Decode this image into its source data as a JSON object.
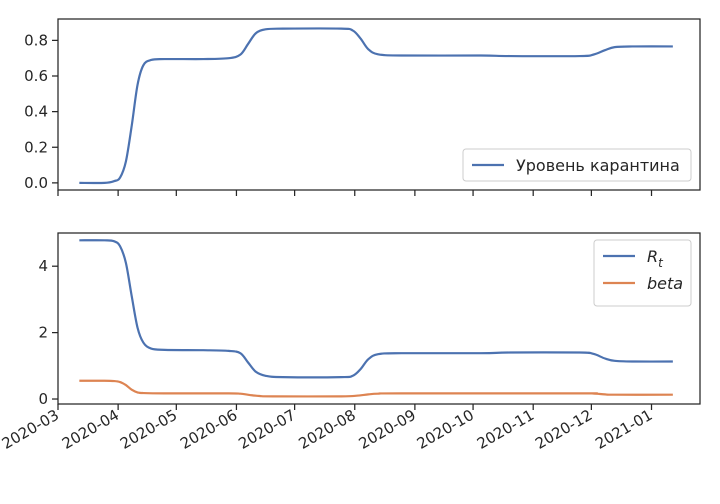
{
  "chart_data": [
    {
      "type": "line",
      "ylim": [
        -0.04,
        0.92
      ],
      "yticks": [
        "0.0",
        "0.2",
        "0.4",
        "0.6",
        "0.8"
      ],
      "ytick_values": [
        0.0,
        0.2,
        0.4,
        0.6,
        0.8
      ],
      "legend": {
        "placement": "lower-right"
      },
      "grid": false,
      "series": [
        {
          "name": "Уровень карантина",
          "color": "#4c72b0",
          "points": [
            [
              "2020-03-12",
              0.0
            ],
            [
              "2020-03-25",
              0.0
            ],
            [
              "2020-03-30",
              0.01
            ],
            [
              "2020-04-02",
              0.03
            ],
            [
              "2020-04-05",
              0.12
            ],
            [
              "2020-04-08",
              0.32
            ],
            [
              "2020-04-11",
              0.55
            ],
            [
              "2020-04-14",
              0.66
            ],
            [
              "2020-04-18",
              0.69
            ],
            [
              "2020-04-25",
              0.695
            ],
            [
              "2020-05-15",
              0.695
            ],
            [
              "2020-05-28",
              0.7
            ],
            [
              "2020-06-03",
              0.72
            ],
            [
              "2020-06-07",
              0.78
            ],
            [
              "2020-06-11",
              0.84
            ],
            [
              "2020-06-16",
              0.862
            ],
            [
              "2020-06-25",
              0.866
            ],
            [
              "2020-07-25",
              0.866
            ],
            [
              "2020-07-31",
              0.855
            ],
            [
              "2020-08-04",
              0.81
            ],
            [
              "2020-08-08",
              0.75
            ],
            [
              "2020-08-13",
              0.722
            ],
            [
              "2020-08-25",
              0.715
            ],
            [
              "2020-10-05",
              0.715
            ],
            [
              "2020-10-20",
              0.712
            ],
            [
              "2020-11-25",
              0.712
            ],
            [
              "2020-12-02",
              0.72
            ],
            [
              "2020-12-08",
              0.745
            ],
            [
              "2020-12-13",
              0.762
            ],
            [
              "2020-12-22",
              0.766
            ],
            [
              "2021-01-12",
              0.766
            ]
          ]
        }
      ]
    },
    {
      "type": "line",
      "ylim": [
        -0.15,
        5.0
      ],
      "yticks": [
        "0",
        "2",
        "4"
      ],
      "ytick_values": [
        0,
        2,
        4
      ],
      "xticks": [
        "2020-03",
        "2020-04",
        "2020-05",
        "2020-06",
        "2020-07",
        "2020-08",
        "2020-09",
        "2020-10",
        "2020-11",
        "2020-12",
        "2021-01"
      ],
      "xtick_dates": [
        "2020-03-01",
        "2020-04-01",
        "2020-05-01",
        "2020-06-01",
        "2020-07-01",
        "2020-08-01",
        "2020-09-01",
        "2020-10-01",
        "2020-11-01",
        "2020-12-01",
        "2021-01-01"
      ],
      "legend": {
        "placement": "upper-right"
      },
      "grid": false,
      "series": [
        {
          "name": "R",
          "name_subscript": "t",
          "color": "#4c72b0",
          "points": [
            [
              "2020-03-12",
              4.78
            ],
            [
              "2020-03-25",
              4.78
            ],
            [
              "2020-03-30",
              4.75
            ],
            [
              "2020-04-02",
              4.6
            ],
            [
              "2020-04-05",
              4.1
            ],
            [
              "2020-04-08",
              3.1
            ],
            [
              "2020-04-11",
              2.15
            ],
            [
              "2020-04-14",
              1.7
            ],
            [
              "2020-04-18",
              1.52
            ],
            [
              "2020-04-25",
              1.48
            ],
            [
              "2020-05-15",
              1.47
            ],
            [
              "2020-05-28",
              1.45
            ],
            [
              "2020-06-03",
              1.38
            ],
            [
              "2020-06-07",
              1.1
            ],
            [
              "2020-06-11",
              0.82
            ],
            [
              "2020-06-16",
              0.7
            ],
            [
              "2020-06-25",
              0.66
            ],
            [
              "2020-07-25",
              0.66
            ],
            [
              "2020-07-31",
              0.7
            ],
            [
              "2020-08-04",
              0.9
            ],
            [
              "2020-08-08",
              1.2
            ],
            [
              "2020-08-13",
              1.35
            ],
            [
              "2020-08-25",
              1.38
            ],
            [
              "2020-10-05",
              1.38
            ],
            [
              "2020-10-20",
              1.4
            ],
            [
              "2020-11-25",
              1.4
            ],
            [
              "2020-12-02",
              1.36
            ],
            [
              "2020-12-08",
              1.22
            ],
            [
              "2020-12-13",
              1.15
            ],
            [
              "2020-12-22",
              1.13
            ],
            [
              "2021-01-12",
              1.13
            ]
          ]
        },
        {
          "name": "beta",
          "name_subscript": "",
          "color": "#dd8452",
          "points": [
            [
              "2020-03-12",
              0.55
            ],
            [
              "2020-03-25",
              0.55
            ],
            [
              "2020-03-30",
              0.54
            ],
            [
              "2020-04-02",
              0.51
            ],
            [
              "2020-04-05",
              0.42
            ],
            [
              "2020-04-08",
              0.28
            ],
            [
              "2020-04-11",
              0.2
            ],
            [
              "2020-04-14",
              0.18
            ],
            [
              "2020-04-25",
              0.17
            ],
            [
              "2020-05-28",
              0.17
            ],
            [
              "2020-06-03",
              0.16
            ],
            [
              "2020-06-08",
              0.12
            ],
            [
              "2020-06-13",
              0.09
            ],
            [
              "2020-06-20",
              0.08
            ],
            [
              "2020-07-25",
              0.08
            ],
            [
              "2020-08-02",
              0.1
            ],
            [
              "2020-08-08",
              0.14
            ],
            [
              "2020-08-13",
              0.16
            ],
            [
              "2020-08-25",
              0.17
            ],
            [
              "2020-11-25",
              0.17
            ],
            [
              "2020-12-02",
              0.165
            ],
            [
              "2020-12-08",
              0.14
            ],
            [
              "2020-12-13",
              0.13
            ],
            [
              "2021-01-12",
              0.13
            ]
          ]
        }
      ]
    }
  ]
}
